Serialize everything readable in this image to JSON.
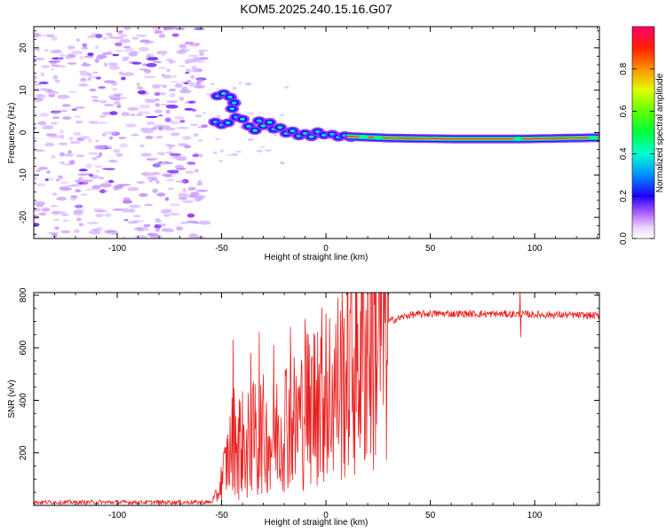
{
  "title": "KOM5.2025.240.15.16.G07",
  "chart_data": [
    {
      "type": "heatmap",
      "name": "spectrogram",
      "xlabel": "Height of straight line (km)",
      "ylabel": "Frequency (Hz)",
      "xlim": [
        -140,
        131
      ],
      "ylim": [
        -25,
        25
      ],
      "xticks": [
        -100,
        -50,
        0,
        50,
        100
      ],
      "xtick_labels": [
        "-100",
        "-50",
        "0",
        "50",
        "100"
      ],
      "yticks": [
        -20,
        -10,
        0,
        10,
        20
      ],
      "ytick_labels": [
        "-20",
        "-10",
        "0",
        "10",
        "20"
      ],
      "colorbar": {
        "label": "Normalized spectral amplitude",
        "range": [
          0,
          1
        ],
        "ticks": [
          0.0,
          0.2,
          0.4,
          0.6,
          0.8
        ],
        "tick_labels": [
          "0.0",
          "0.2",
          "0.4",
          "0.6",
          "0.8"
        ],
        "colors": [
          "#ffffff",
          "#e8c8ff",
          "#a040ff",
          "#0000ff",
          "#00c0ff",
          "#00ff80",
          "#00ff00",
          "#c0ff00",
          "#ffc000",
          "#ff4000",
          "#ff0060"
        ]
      },
      "ridge": {
        "description_points": [
          {
            "x": -52,
            "y": 9.0
          },
          {
            "x": -47,
            "y": 8.0
          },
          {
            "x": -44,
            "y": 6.0
          },
          {
            "x": -50,
            "y": 2.0
          },
          {
            "x": -42,
            "y": 3.5
          },
          {
            "x": -35,
            "y": 2.0
          },
          {
            "x": -28,
            "y": 2.5
          },
          {
            "x": -20,
            "y": 1.0
          },
          {
            "x": -12,
            "y": -0.5
          },
          {
            "x": -5,
            "y": 0.0
          },
          {
            "x": 5,
            "y": -0.8
          },
          {
            "x": 15,
            "y": -1.0
          },
          {
            "x": 30,
            "y": -1.3
          },
          {
            "x": 60,
            "y": -1.5
          },
          {
            "x": 95,
            "y": -1.5
          },
          {
            "x": 131,
            "y": -1.2
          }
        ]
      }
    },
    {
      "type": "line",
      "name": "snr",
      "xlabel": "Height of straight line (km)",
      "ylabel": "SNR (v/v)",
      "xlim": [
        -140,
        131
      ],
      "ylim": [
        0,
        810
      ],
      "xticks": [
        -100,
        -50,
        0,
        50,
        100
      ],
      "xtick_labels": [
        "-100",
        "-50",
        "0",
        "50",
        "100"
      ],
      "yticks": [
        200,
        400,
        600,
        800
      ],
      "ytick_labels": [
        "200",
        "400",
        "600",
        "800"
      ],
      "color": "#e82020",
      "envelope": [
        {
          "x": -140,
          "y": 12
        },
        {
          "x": -55,
          "y": 12
        },
        {
          "x": -52,
          "y": 40
        },
        {
          "x": -48,
          "y": 150
        },
        {
          "x": -44,
          "y": 260
        },
        {
          "x": -38,
          "y": 230
        },
        {
          "x": -32,
          "y": 280
        },
        {
          "x": -26,
          "y": 250
        },
        {
          "x": -20,
          "y": 330
        },
        {
          "x": -14,
          "y": 320
        },
        {
          "x": -8,
          "y": 380
        },
        {
          "x": -2,
          "y": 420
        },
        {
          "x": 5,
          "y": 450
        },
        {
          "x": 12,
          "y": 530
        },
        {
          "x": 18,
          "y": 610
        },
        {
          "x": 24,
          "y": 660
        },
        {
          "x": 30,
          "y": 700
        },
        {
          "x": 40,
          "y": 725
        },
        {
          "x": 50,
          "y": 730
        },
        {
          "x": 90,
          "y": 728
        },
        {
          "x": 131,
          "y": 722
        }
      ],
      "spikes": [
        {
          "x": -44.5,
          "y": 630
        },
        {
          "x": -36,
          "y": 580
        },
        {
          "x": -32,
          "y": 660
        },
        {
          "x": -25,
          "y": 610
        },
        {
          "x": -17,
          "y": 680
        },
        {
          "x": -10,
          "y": 710
        },
        {
          "x": -4,
          "y": 660
        },
        {
          "x": 0,
          "y": 730
        },
        {
          "x": 93,
          "y": 820
        }
      ],
      "dips": [
        {
          "x": -42,
          "y": 20
        },
        {
          "x": -38,
          "y": 30
        },
        {
          "x": -33,
          "y": 40
        },
        {
          "x": -27,
          "y": 60
        },
        {
          "x": -22,
          "y": 90
        },
        {
          "x": -15,
          "y": 120
        },
        {
          "x": -8,
          "y": 160
        },
        {
          "x": 1,
          "y": 180
        },
        {
          "x": 11,
          "y": 260
        },
        {
          "x": 93,
          "y": 640
        }
      ]
    }
  ]
}
